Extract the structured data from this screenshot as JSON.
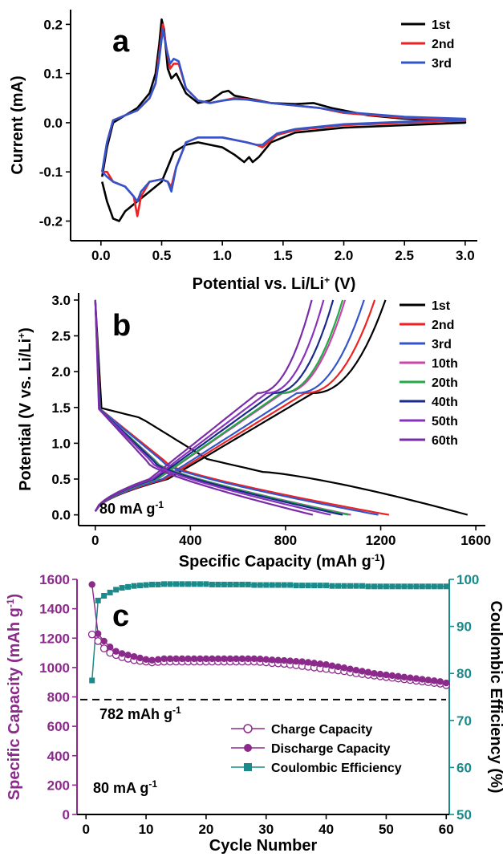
{
  "chart_data": [
    {
      "panel": "a",
      "type": "line",
      "xlabel": "Potential vs. Li/Li",
      "xlabel_sup": "+",
      "xlabel_suffix": " (V)",
      "ylabel": "Current (mA)",
      "xlim": [
        -0.25,
        3.1
      ],
      "ylim": [
        -0.24,
        0.23
      ],
      "xticks": [
        0.0,
        0.5,
        1.0,
        1.5,
        2.0,
        2.5,
        3.0
      ],
      "xtick_labels": [
        "0.0",
        "0.5",
        "1.0",
        "1.5",
        "2.0",
        "2.5",
        "3.0"
      ],
      "yticks": [
        -0.2,
        -0.1,
        0.0,
        0.1,
        0.2
      ],
      "ytick_labels": [
        "-0.2",
        "-0.1",
        "0.0",
        "0.1",
        "0.2"
      ],
      "legend_position": "top-right",
      "series": [
        {
          "name": "1st",
          "color": "#000000",
          "x": [
            0.01,
            0.05,
            0.1,
            0.2,
            0.3,
            0.4,
            0.45,
            0.48,
            0.5,
            0.52,
            0.55,
            0.58,
            0.62,
            0.7,
            0.8,
            0.9,
            1.0,
            1.05,
            1.1,
            1.2,
            1.4,
            1.6,
            1.75,
            1.9,
            2.2,
            2.5,
            3.0,
            3.0,
            2.5,
            2.0,
            1.6,
            1.4,
            1.3,
            1.25,
            1.22,
            1.18,
            1.1,
            1.0,
            0.9,
            0.8,
            0.7,
            0.6,
            0.55,
            0.5,
            0.45,
            0.4,
            0.3,
            0.2,
            0.15,
            0.1,
            0.05,
            0.01
          ],
          "y": [
            -0.11,
            -0.05,
            0.0,
            0.015,
            0.03,
            0.06,
            0.1,
            0.16,
            0.21,
            0.19,
            0.11,
            0.09,
            0.1,
            0.06,
            0.04,
            0.045,
            0.062,
            0.065,
            0.055,
            0.05,
            0.04,
            0.038,
            0.04,
            0.03,
            0.015,
            0.008,
            0.002,
            0.0,
            -0.005,
            -0.01,
            -0.02,
            -0.04,
            -0.07,
            -0.08,
            -0.07,
            -0.08,
            -0.065,
            -0.05,
            -0.045,
            -0.04,
            -0.045,
            -0.06,
            -0.09,
            -0.12,
            -0.13,
            -0.14,
            -0.16,
            -0.18,
            -0.2,
            -0.195,
            -0.16,
            -0.12
          ]
        },
        {
          "name": "2nd",
          "color": "#ee2222",
          "x": [
            0.01,
            0.05,
            0.1,
            0.2,
            0.3,
            0.4,
            0.45,
            0.48,
            0.51,
            0.54,
            0.57,
            0.6,
            0.64,
            0.7,
            0.8,
            0.9,
            1.0,
            1.1,
            1.2,
            1.4,
            1.6,
            1.8,
            2.0,
            2.5,
            3.0,
            3.0,
            2.5,
            2.0,
            1.6,
            1.45,
            1.38,
            1.33,
            1.28,
            1.2,
            1.0,
            0.8,
            0.7,
            0.62,
            0.58,
            0.55,
            0.5,
            0.4,
            0.33,
            0.3,
            0.27,
            0.2,
            0.1,
            0.05,
            0.01
          ],
          "y": [
            -0.1,
            -0.04,
            0.005,
            0.015,
            0.025,
            0.05,
            0.08,
            0.14,
            0.2,
            0.15,
            0.11,
            0.12,
            0.12,
            0.07,
            0.045,
            0.04,
            0.045,
            0.05,
            0.048,
            0.04,
            0.035,
            0.03,
            0.02,
            0.01,
            0.006,
            0.004,
            0.0,
            -0.005,
            -0.015,
            -0.025,
            -0.04,
            -0.05,
            -0.045,
            -0.04,
            -0.03,
            -0.03,
            -0.04,
            -0.09,
            -0.13,
            -0.12,
            -0.115,
            -0.12,
            -0.15,
            -0.19,
            -0.15,
            -0.13,
            -0.12,
            -0.1,
            -0.1
          ]
        },
        {
          "name": "3rd",
          "color": "#3355cc",
          "x": [
            0.01,
            0.05,
            0.1,
            0.2,
            0.3,
            0.4,
            0.45,
            0.48,
            0.51,
            0.54,
            0.57,
            0.6,
            0.64,
            0.7,
            0.8,
            0.9,
            1.0,
            1.1,
            1.2,
            1.4,
            1.6,
            1.8,
            2.0,
            2.5,
            3.0,
            3.0,
            2.5,
            2.0,
            1.6,
            1.45,
            1.38,
            1.33,
            1.28,
            1.2,
            1.0,
            0.8,
            0.7,
            0.62,
            0.58,
            0.55,
            0.5,
            0.4,
            0.33,
            0.3,
            0.27,
            0.2,
            0.1,
            0.05,
            0.01
          ],
          "y": [
            -0.1,
            -0.04,
            0.005,
            0.015,
            0.025,
            0.05,
            0.08,
            0.13,
            0.19,
            0.15,
            0.12,
            0.13,
            0.125,
            0.07,
            0.045,
            0.04,
            0.045,
            0.048,
            0.047,
            0.04,
            0.035,
            0.03,
            0.022,
            0.012,
            0.008,
            0.006,
            0.002,
            -0.003,
            -0.013,
            -0.022,
            -0.035,
            -0.045,
            -0.045,
            -0.04,
            -0.03,
            -0.03,
            -0.04,
            -0.09,
            -0.14,
            -0.12,
            -0.115,
            -0.12,
            -0.14,
            -0.16,
            -0.15,
            -0.13,
            -0.12,
            -0.11,
            -0.1
          ]
        }
      ],
      "annotation": "a"
    },
    {
      "panel": "b",
      "type": "line",
      "xlabel": "Specific Capacity (mAh g",
      "xlabel_sup": "-1",
      "xlabel_suffix": ")",
      "ylabel": "Potential (V vs. Li/Li",
      "ylabel_sup": "+",
      "ylabel_suffix": ")",
      "xlim": [
        -70,
        1640
      ],
      "ylim": [
        -0.15,
        3.1
      ],
      "xticks": [
        0,
        400,
        800,
        1200,
        1600
      ],
      "xtick_labels": [
        "0",
        "400",
        "800",
        "1200",
        "1600"
      ],
      "yticks": [
        0.0,
        0.5,
        1.0,
        1.5,
        2.0,
        2.5,
        3.0
      ],
      "ytick_labels": [
        "0.0",
        "0.5",
        "1.0",
        "1.5",
        "2.0",
        "2.5",
        "3.0"
      ],
      "legend_position": "right",
      "series": [
        {
          "name": "1st",
          "color": "#000000",
          "discharge": 1565,
          "charge": 1220
        },
        {
          "name": "2nd",
          "color": "#ee2222",
          "discharge": 1235,
          "charge": 1175
        },
        {
          "name": "3rd",
          "color": "#3355cc",
          "discharge": 1190,
          "charge": 1130
        },
        {
          "name": "10th",
          "color": "#cc44aa",
          "discharge": 1075,
          "charge": 1050
        },
        {
          "name": "20th",
          "color": "#22aa44",
          "discharge": 1065,
          "charge": 1040
        },
        {
          "name": "40th",
          "color": "#1a2a88",
          "discharge": 1040,
          "charge": 1000
        },
        {
          "name": "50th",
          "color": "#8833bb",
          "discharge": 990,
          "charge": 960
        },
        {
          "name": "60th",
          "color": "#7a2ca8",
          "discharge": 915,
          "charge": 910
        }
      ],
      "annotation": "80 mA g",
      "annotation_sup": "-1",
      "letter": "b"
    },
    {
      "panel": "c",
      "type": "scatter",
      "xlabel": "Cycle Number",
      "ylabel": "Specific Capacity (mAh g",
      "ylabel_sup": "-1",
      "ylabel_suffix": ")",
      "ylabel_right": "Coulombic Efficiency (%)",
      "xlim": [
        -1.5,
        60.5
      ],
      "ylim": [
        0,
        1600
      ],
      "ylim_right": [
        50,
        100
      ],
      "xticks": [
        0,
        10,
        20,
        30,
        40,
        50,
        60
      ],
      "xtick_labels": [
        "0",
        "10",
        "20",
        "30",
        "40",
        "50",
        "60"
      ],
      "yticks": [
        0,
        200,
        400,
        600,
        800,
        1000,
        1200,
        1400,
        1600
      ],
      "ytick_labels": [
        "0",
        "200",
        "400",
        "600",
        "800",
        "1000",
        "1200",
        "1400",
        "1600"
      ],
      "yticks_right": [
        50,
        60,
        70,
        80,
        90,
        100
      ],
      "ytick_labels_right": [
        "50",
        "60",
        "70",
        "80",
        "90",
        "100"
      ],
      "reference_line": {
        "y": 782,
        "label": "782 mAh g",
        "label_sup": "-1"
      },
      "annotation": "80 mA g",
      "annotation_sup": "-1",
      "letter": "c",
      "legend_position": "bottom-right",
      "legend": [
        "Charge Capacity",
        "Discharge Capacity",
        "Coulombic Efficiency"
      ],
      "colors": {
        "capacity": "#8b2a8b",
        "efficiency": "#1a8a8a"
      },
      "cycles": [
        1,
        2,
        3,
        4,
        5,
        6,
        7,
        8,
        9,
        10,
        11,
        12,
        13,
        14,
        15,
        16,
        17,
        18,
        19,
        20,
        21,
        22,
        23,
        24,
        25,
        26,
        27,
        28,
        29,
        30,
        31,
        32,
        33,
        34,
        35,
        36,
        37,
        38,
        39,
        40,
        41,
        42,
        43,
        44,
        45,
        46,
        47,
        48,
        49,
        50,
        51,
        52,
        53,
        54,
        55,
        56,
        57,
        58,
        59,
        60
      ],
      "charge": [
        1225,
        1180,
        1130,
        1100,
        1085,
        1070,
        1060,
        1050,
        1045,
        1040,
        1035,
        1038,
        1040,
        1040,
        1040,
        1040,
        1040,
        1040,
        1040,
        1040,
        1040,
        1040,
        1040,
        1040,
        1040,
        1040,
        1040,
        1040,
        1038,
        1035,
        1030,
        1028,
        1025,
        1020,
        1015,
        1010,
        1005,
        1000,
        995,
        990,
        985,
        980,
        975,
        968,
        960,
        955,
        950,
        945,
        940,
        935,
        930,
        925,
        920,
        915,
        910,
        905,
        900,
        895,
        890,
        880
      ],
      "discharge": [
        1565,
        1230,
        1180,
        1140,
        1110,
        1095,
        1085,
        1075,
        1065,
        1055,
        1050,
        1055,
        1060,
        1060,
        1060,
        1060,
        1060,
        1060,
        1060,
        1060,
        1060,
        1060,
        1060,
        1060,
        1060,
        1060,
        1060,
        1060,
        1058,
        1055,
        1052,
        1050,
        1048,
        1045,
        1042,
        1040,
        1035,
        1030,
        1025,
        1020,
        1012,
        1005,
        998,
        990,
        982,
        975,
        968,
        960,
        955,
        950,
        945,
        940,
        935,
        930,
        925,
        920,
        915,
        910,
        905,
        895
      ],
      "efficiency": [
        78.5,
        95.5,
        96.5,
        97.2,
        97.8,
        98.2,
        98.4,
        98.6,
        98.7,
        98.8,
        98.9,
        98.9,
        99.0,
        99.0,
        99.0,
        99.0,
        99.0,
        99.0,
        99.0,
        99.0,
        98.9,
        98.9,
        98.9,
        98.9,
        98.9,
        98.9,
        98.9,
        98.8,
        98.8,
        98.8,
        98.8,
        98.8,
        98.8,
        98.8,
        98.7,
        98.7,
        98.7,
        98.7,
        98.7,
        98.7,
        98.6,
        98.6,
        98.6,
        98.6,
        98.6,
        98.6,
        98.5,
        98.5,
        98.5,
        98.5,
        98.5,
        98.5,
        98.5,
        98.5,
        98.5,
        98.5,
        98.5,
        98.5,
        98.5,
        98.5
      ]
    }
  ]
}
